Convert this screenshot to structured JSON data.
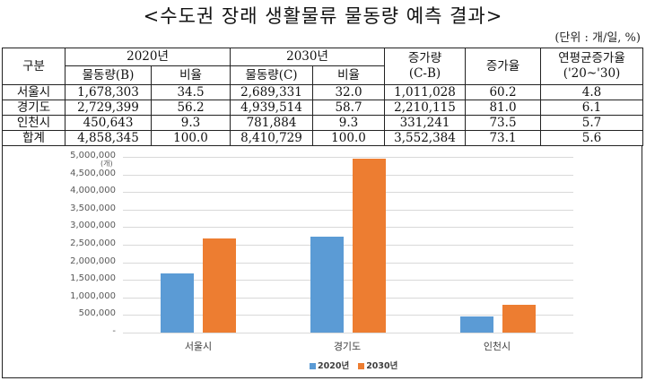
{
  "title": "<수도권 장래 생활물류 물동량 예측 결과>",
  "unit": "(단위 : 개/일, %)",
  "table": {
    "headers": {
      "region": "구분",
      "y2020": "2020년",
      "y2030": "2030년",
      "increase_l1": "증가량",
      "increase_l2": "(C-B)",
      "rate": "증가율",
      "cagr_l1": "연평균증가율",
      "cagr_l2": "('20~'30)",
      "vol_b": "물동량(B)",
      "ratio": "비율",
      "vol_c": "물동량(C)",
      "ratio2": "비율"
    },
    "rows": [
      {
        "region": "서울시",
        "vol2020": "1,678,303",
        "ratio2020": "34.5",
        "vol2030": "2,689,331",
        "ratio2030": "32.0",
        "increase": "1,011,028",
        "rate": "60.2",
        "cagr": "4.8"
      },
      {
        "region": "경기도",
        "vol2020": "2,729,399",
        "ratio2020": "56.2",
        "vol2030": "4,939,514",
        "ratio2030": "58.7",
        "increase": "2,210,115",
        "rate": "81.0",
        "cagr": "6.1"
      },
      {
        "region": "인천시",
        "vol2020": "450,643",
        "ratio2020": "9.3",
        "vol2030": "781,884",
        "ratio2030": "9.3",
        "increase": "331,241",
        "rate": "73.5",
        "cagr": "5.7"
      },
      {
        "region": "합계",
        "vol2020": "4,858,345",
        "ratio2020": "100.0",
        "vol2030": "8,410,729",
        "ratio2030": "100.0",
        "increase": "3,552,384",
        "rate": "73.1",
        "cagr": "5.6"
      }
    ]
  },
  "chart_data": {
    "type": "bar",
    "title": "",
    "xlabel": "",
    "ylabel": "(개)",
    "ylim": [
      0,
      5000000
    ],
    "yticks": [
      "-",
      "500,000",
      "1,000,000",
      "1,500,000",
      "2,000,000",
      "2,500,000",
      "3,000,000",
      "3,500,000",
      "4,000,000",
      "4,500,000",
      "5,000,000"
    ],
    "categories": [
      "서울시",
      "경기도",
      "인천시"
    ],
    "series": [
      {
        "name": "2020년",
        "color": "#5b9bd5",
        "values": [
          1678303,
          2729399,
          450643
        ]
      },
      {
        "name": "2030년",
        "color": "#ed7d31",
        "values": [
          2689331,
          4939514,
          781884
        ]
      }
    ],
    "grid": true,
    "legend_position": "bottom"
  }
}
